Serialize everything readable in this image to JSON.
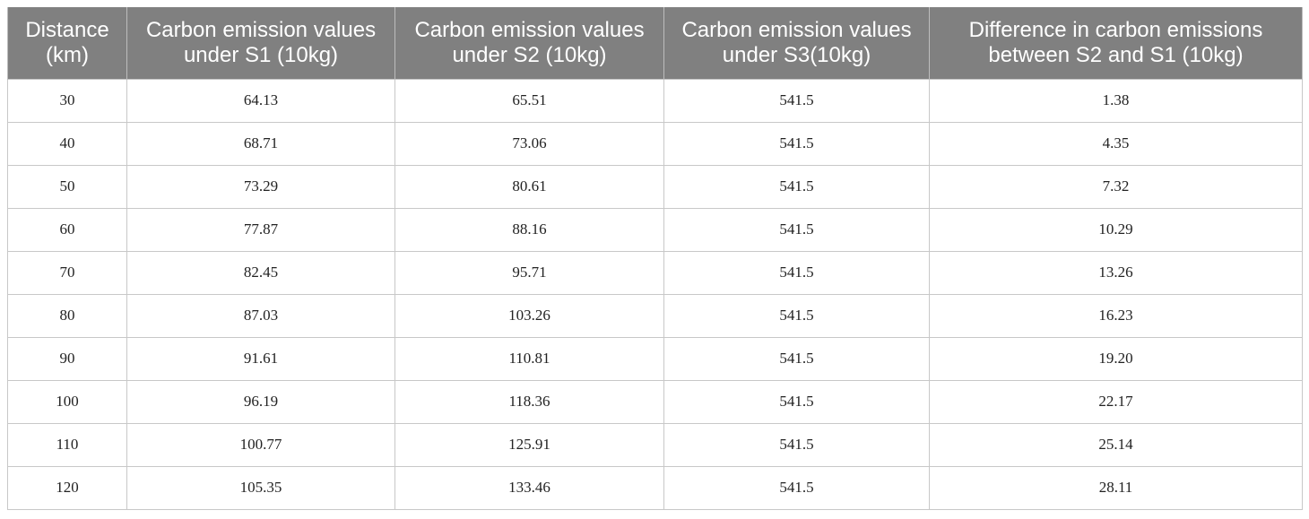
{
  "table": {
    "columns": [
      "Distance (km)",
      "Carbon emission values under S1 (10kg)",
      "Carbon emission values under S2 (10kg)",
      "Carbon emission values under S3(10kg)",
      "Difference in carbon emissions between S2 and S1 (10kg)"
    ],
    "rows": [
      [
        "30",
        "64.13",
        "65.51",
        "541.5",
        "1.38"
      ],
      [
        "40",
        "68.71",
        "73.06",
        "541.5",
        "4.35"
      ],
      [
        "50",
        "73.29",
        "80.61",
        "541.5",
        "7.32"
      ],
      [
        "60",
        "77.87",
        "88.16",
        "541.5",
        "10.29"
      ],
      [
        "70",
        "82.45",
        "95.71",
        "541.5",
        "13.26"
      ],
      [
        "80",
        "87.03",
        "103.26",
        "541.5",
        "16.23"
      ],
      [
        "90",
        "91.61",
        "110.81",
        "541.5",
        "19.20"
      ],
      [
        "100",
        "96.19",
        "118.36",
        "541.5",
        "22.17"
      ],
      [
        "110",
        "100.77",
        "125.91",
        "541.5",
        "25.14"
      ],
      [
        "120",
        "105.35",
        "133.46",
        "541.5",
        "28.11"
      ]
    ]
  }
}
